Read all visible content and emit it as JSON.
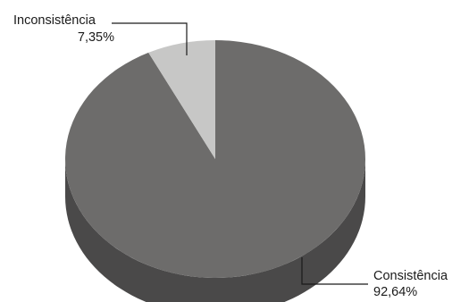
{
  "chart_data": {
    "type": "pie",
    "style": "3d",
    "slices": [
      {
        "label": "Consistência",
        "value_label": "92,64%",
        "value": 92.64,
        "color": "#6d6c6b",
        "side_color": "#4a4949"
      },
      {
        "label": "Inconsistência",
        "value_label": "7,35%",
        "value": 7.35,
        "color": "#c7c7c6",
        "side_color": "#9a9a99"
      }
    ],
    "legend": "none",
    "title": ""
  }
}
